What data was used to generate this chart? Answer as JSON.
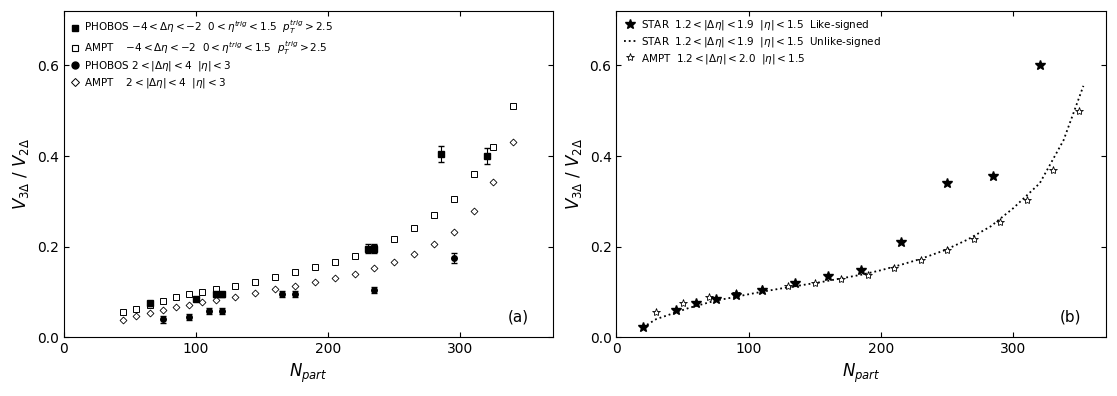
{
  "panel_a": {
    "phobos_sq_x": [
      65,
      100,
      115,
      120,
      230,
      235,
      285,
      320
    ],
    "phobos_sq_y": [
      0.075,
      0.085,
      0.095,
      0.095,
      0.195,
      0.195,
      0.405,
      0.4
    ],
    "phobos_sq_yerr": [
      0.005,
      0.005,
      0.005,
      0.005,
      0.01,
      0.01,
      0.018,
      0.018
    ],
    "ampt_sq_x": [
      45,
      55,
      65,
      75,
      85,
      95,
      105,
      115,
      130,
      145,
      160,
      175,
      190,
      205,
      220,
      235,
      250,
      265,
      280,
      295,
      310,
      325,
      340
    ],
    "ampt_sq_y": [
      0.055,
      0.063,
      0.072,
      0.08,
      0.088,
      0.095,
      0.1,
      0.106,
      0.114,
      0.122,
      0.132,
      0.143,
      0.155,
      0.167,
      0.18,
      0.198,
      0.218,
      0.242,
      0.27,
      0.305,
      0.36,
      0.42,
      0.51
    ],
    "phobos_circ_x": [
      75,
      95,
      110,
      120,
      165,
      175,
      235,
      295
    ],
    "phobos_circ_y": [
      0.04,
      0.045,
      0.058,
      0.058,
      0.095,
      0.095,
      0.105,
      0.175
    ],
    "phobos_circ_yerr": [
      0.008,
      0.007,
      0.007,
      0.007,
      0.007,
      0.007,
      0.007,
      0.012
    ],
    "ampt_circ_x": [
      45,
      55,
      65,
      75,
      85,
      95,
      105,
      115,
      130,
      145,
      160,
      175,
      190,
      205,
      220,
      235,
      250,
      265,
      280,
      295,
      310,
      325,
      340
    ],
    "ampt_circ_y": [
      0.038,
      0.046,
      0.053,
      0.06,
      0.066,
      0.072,
      0.077,
      0.082,
      0.089,
      0.097,
      0.106,
      0.114,
      0.122,
      0.13,
      0.14,
      0.152,
      0.167,
      0.184,
      0.205,
      0.232,
      0.278,
      0.342,
      0.43
    ],
    "xlim": [
      0,
      370
    ],
    "ylim": [
      0,
      0.72
    ],
    "yticks": [
      0.0,
      0.2,
      0.4,
      0.6
    ],
    "xticks": [
      0,
      100,
      200,
      300
    ],
    "xlabel": "$N_{part}$",
    "ylabel": "$V_{3\\Delta}$ / $V_{2\\Delta}$",
    "label": "(a)"
  },
  "panel_b": {
    "star_solid_x": [
      20,
      45,
      60,
      75,
      90,
      110,
      135,
      160,
      185,
      215,
      250,
      285,
      320
    ],
    "star_solid_y": [
      0.022,
      0.06,
      0.075,
      0.085,
      0.093,
      0.105,
      0.12,
      0.135,
      0.148,
      0.21,
      0.34,
      0.355,
      0.6
    ],
    "star_dotted_x": [
      20,
      30,
      45,
      55,
      65,
      75,
      88,
      100,
      113,
      125,
      140,
      155,
      170,
      185,
      200,
      215,
      230,
      248,
      265,
      283,
      300,
      320,
      338,
      353
    ],
    "star_dotted_y": [
      0.022,
      0.04,
      0.055,
      0.065,
      0.073,
      0.081,
      0.088,
      0.095,
      0.102,
      0.108,
      0.115,
      0.122,
      0.13,
      0.138,
      0.148,
      0.16,
      0.173,
      0.192,
      0.215,
      0.245,
      0.285,
      0.34,
      0.435,
      0.555
    ],
    "ampt_star_x": [
      30,
      50,
      70,
      90,
      110,
      130,
      150,
      170,
      190,
      210,
      230,
      250,
      270,
      290,
      310,
      330,
      350
    ],
    "ampt_star_y": [
      0.055,
      0.075,
      0.088,
      0.098,
      0.106,
      0.113,
      0.12,
      0.128,
      0.138,
      0.153,
      0.17,
      0.192,
      0.218,
      0.255,
      0.303,
      0.37,
      0.5
    ],
    "xlim": [
      0,
      370
    ],
    "ylim": [
      0,
      0.72
    ],
    "yticks": [
      0.0,
      0.2,
      0.4,
      0.6
    ],
    "xticks": [
      0,
      100,
      200,
      300
    ],
    "xlabel": "$N_{part}$",
    "ylabel": "$V_{3\\Delta}$ / $V_{2\\Delta}$",
    "label": "(b)"
  },
  "bg_color": "#ffffff",
  "text_color": "#000000",
  "tick_fontsize": 10,
  "label_fontsize": 12,
  "legend_fontsize": 7.5
}
